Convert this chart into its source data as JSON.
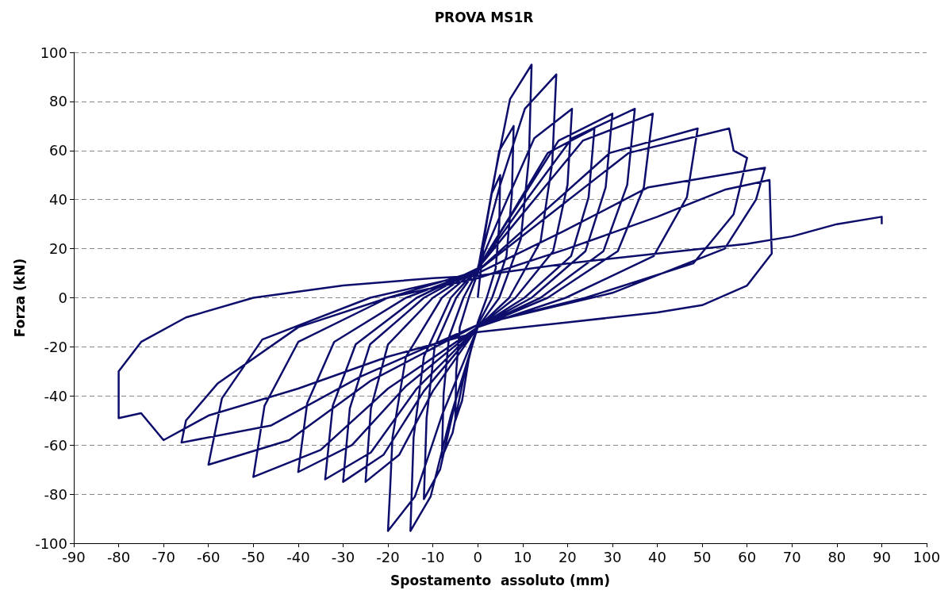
{
  "chart_data": {
    "type": "line",
    "title": "PROVA MS1R",
    "xlabel": "Spostamento  assoluto (mm)",
    "ylabel": "Forza (kN)",
    "xlim": [
      -90,
      100
    ],
    "xticks": [
      -90,
      -80,
      -70,
      -60,
      -50,
      -40,
      -30,
      -20,
      -10,
      0,
      10,
      20,
      30,
      40,
      50,
      60,
      70,
      80,
      90,
      100
    ],
    "ylim": [
      -100,
      100
    ],
    "yticks": [
      -100,
      -80,
      -60,
      -40,
      -20,
      0,
      20,
      40,
      60,
      80,
      100
    ],
    "grid": "y",
    "marker": "none",
    "line_style": "solid",
    "series": [
      {
        "color": "#0d0d6b",
        "x": [
          0,
          1.5,
          3,
          5,
          4.8,
          4,
          2,
          0,
          -2,
          -3.5,
          -5,
          -4.8,
          -4,
          -2,
          0,
          2.4,
          4.8,
          8,
          7.6,
          6.4,
          3.2,
          0,
          -3.2,
          -5.6,
          -8,
          -7.6,
          -6.4,
          -3.2,
          0,
          3.6,
          7.2,
          12,
          11.4,
          9.6,
          4.8,
          0,
          -4.8,
          -8.4,
          -12,
          -11.4,
          -9.6,
          -4.8,
          0,
          5,
          10.5,
          17.5,
          16.6,
          14,
          7,
          0,
          -6,
          -10.5,
          -15,
          -14.3,
          -12,
          -6,
          0,
          6.3,
          12.6,
          21,
          20,
          16.8,
          8.4,
          0,
          -8,
          -14,
          -20,
          -19.5,
          -19,
          -16,
          -8,
          0,
          7.8,
          15.6,
          26,
          24.7,
          20.8,
          10.4,
          0,
          -10,
          -17.5,
          -25,
          -23.8,
          -20,
          -10,
          0,
          9,
          18,
          30,
          28.5,
          24,
          12,
          0,
          -12,
          -21,
          -30,
          -28.5,
          -24,
          -12,
          0,
          10.5,
          21,
          35,
          33.3,
          28,
          14,
          0,
          -13.6,
          -23.8,
          -34,
          -32.3,
          -27.2,
          -13.6,
          0,
          11.7,
          23.4,
          39,
          37,
          31.2,
          15.6,
          0,
          -16,
          -28,
          -40,
          -38,
          -32,
          -16,
          0,
          14.7,
          29.4,
          49,
          46.6,
          39.2,
          19.6,
          0,
          -20,
          -35,
          -50,
          -47.5,
          -40,
          -20,
          0,
          16.8,
          33.6,
          56,
          57,
          60,
          57,
          48,
          24,
          0,
          -24,
          -42,
          -60,
          -57,
          -48,
          -24,
          0,
          19,
          38,
          64,
          62,
          55,
          30,
          0,
          -26,
          -46,
          -66,
          -65,
          -58,
          -40,
          -20,
          0,
          20,
          40,
          55,
          65,
          65.5,
          60,
          50,
          40,
          20,
          0,
          -20,
          -40,
          -60,
          -70,
          -75,
          -80,
          -80,
          -75,
          -65,
          -50,
          -30,
          -10,
          0,
          20,
          40,
          60,
          70,
          80,
          90,
          90
        ],
        "values": [
          0,
          25,
          42,
          50,
          30,
          12,
          0,
          -10,
          -25,
          -42,
          -50,
          -30,
          -12,
          0,
          10,
          35,
          60,
          70,
          42,
          17,
          0,
          -11,
          -33,
          -55,
          -65,
          -39,
          -16,
          0,
          11,
          48,
          81,
          95,
          57,
          24,
          0,
          -12,
          -41,
          -70,
          -82,
          -49,
          -20,
          0,
          12,
          46,
          77,
          91,
          55,
          23,
          0,
          -12,
          -48,
          -81,
          -95,
          -57,
          -24,
          0,
          12,
          39,
          65,
          77,
          46,
          19,
          0,
          -12,
          -48,
          -81,
          -95,
          -77,
          -57,
          -24,
          0,
          12,
          35,
          59,
          69,
          41,
          17,
          0,
          -12,
          -38,
          -64,
          -75,
          -45,
          -19,
          0,
          12,
          38,
          64,
          75,
          45,
          19,
          0,
          -12,
          -38,
          -64,
          -75,
          -45,
          -19,
          0,
          12,
          39,
          65,
          77,
          46,
          19,
          0,
          -12,
          -37,
          -63,
          -74,
          -44,
          -19,
          0,
          12,
          38,
          64,
          75,
          45,
          19,
          0,
          -12,
          -36,
          -60,
          -71,
          -43,
          -18,
          0,
          11,
          35,
          59,
          69,
          41,
          17,
          0,
          -12,
          -37,
          -62,
          -73,
          -44,
          -18,
          0,
          11,
          35,
          59,
          69,
          60,
          57,
          34,
          14,
          0,
          -11,
          -34,
          -58,
          -68,
          -41,
          -17,
          0,
          10,
          27,
          45,
          53,
          40,
          20,
          2,
          -11,
          -32,
          -52,
          -59,
          -50,
          -35,
          -12,
          0,
          8,
          20,
          33,
          44,
          48,
          18,
          5,
          -3,
          -6,
          -10,
          -14,
          -24,
          -37,
          -48,
          -58,
          -47,
          -49,
          -30,
          -18,
          -8,
          0,
          5,
          8,
          9,
          14,
          18,
          22,
          25,
          30,
          33,
          30
        ]
      }
    ]
  }
}
